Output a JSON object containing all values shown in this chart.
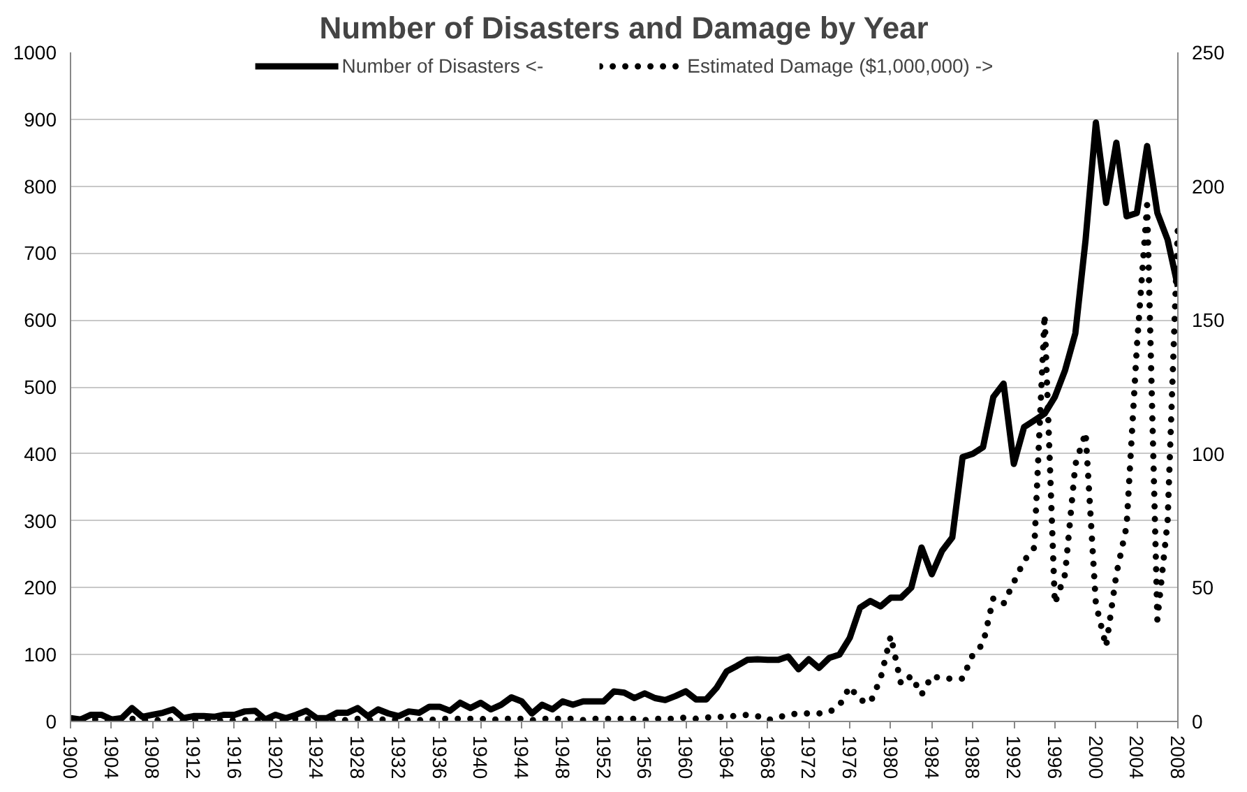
{
  "chart_data": {
    "type": "line",
    "title": "Number of Disasters and Damage by Year",
    "x": [
      1900,
      1901,
      1902,
      1903,
      1904,
      1905,
      1906,
      1907,
      1908,
      1909,
      1910,
      1911,
      1912,
      1913,
      1914,
      1915,
      1916,
      1917,
      1918,
      1919,
      1920,
      1921,
      1922,
      1923,
      1924,
      1925,
      1926,
      1927,
      1928,
      1929,
      1930,
      1931,
      1932,
      1933,
      1934,
      1935,
      1936,
      1937,
      1938,
      1939,
      1940,
      1941,
      1942,
      1943,
      1944,
      1945,
      1946,
      1947,
      1948,
      1949,
      1950,
      1951,
      1952,
      1953,
      1954,
      1955,
      1956,
      1957,
      1958,
      1959,
      1960,
      1961,
      1962,
      1963,
      1964,
      1965,
      1966,
      1967,
      1968,
      1969,
      1970,
      1971,
      1972,
      1973,
      1974,
      1975,
      1976,
      1977,
      1978,
      1979,
      1980,
      1981,
      1982,
      1983,
      1984,
      1985,
      1986,
      1987,
      1988,
      1989,
      1990,
      1991,
      1992,
      1993,
      1994,
      1995,
      1996,
      1997,
      1998,
      1999,
      2000,
      2001,
      2002,
      2003,
      2004,
      2005,
      2006,
      2007,
      2008
    ],
    "series": [
      {
        "name": "Number of Disasters <-",
        "color": "#000000",
        "line_style": "solid",
        "values": [
          5,
          3,
          10,
          10,
          3,
          5,
          20,
          7,
          10,
          13,
          18,
          5,
          8,
          8,
          7,
          10,
          10,
          15,
          16,
          3,
          10,
          5,
          10,
          16,
          5,
          5,
          13,
          13,
          20,
          8,
          18,
          12,
          8,
          15,
          13,
          22,
          22,
          16,
          28,
          20,
          28,
          18,
          25,
          36,
          30,
          12,
          25,
          18,
          30,
          25,
          30,
          30,
          30,
          45,
          43,
          35,
          42,
          35,
          32,
          38,
          45,
          33,
          33,
          50,
          75,
          83,
          92,
          93,
          92,
          92,
          97,
          78,
          93,
          80,
          95,
          100,
          125,
          170,
          180,
          172,
          185,
          185,
          200,
          260,
          220,
          255,
          275,
          395,
          400,
          410,
          485,
          505,
          385,
          440,
          450,
          460,
          485,
          525,
          580,
          720,
          895,
          775,
          865,
          755,
          760,
          860,
          760,
          720,
          650
        ]
      },
      {
        "name": "Estimated Damage ($1,000,000) ->",
        "color": "#000000",
        "line_style": "dotted",
        "axis": "y2",
        "values": [
          0.5,
          0,
          1,
          0.5,
          0,
          0.5,
          1,
          0.5,
          0.5,
          0.5,
          0.5,
          0,
          0.5,
          0.5,
          0,
          0.5,
          0.5,
          0.5,
          0.5,
          0,
          0.5,
          0.5,
          1,
          1,
          0,
          0.5,
          0.5,
          0.5,
          1,
          0.5,
          0.5,
          1,
          0.5,
          0.5,
          0.5,
          0.5,
          1,
          1,
          1,
          1,
          1,
          0.5,
          1,
          1,
          1,
          0.5,
          1,
          1,
          1,
          1,
          0.5,
          1,
          1,
          1,
          1,
          1,
          0.5,
          1,
          1,
          1,
          1.5,
          1,
          1.5,
          1.5,
          2,
          2,
          2.5,
          2,
          0.5,
          1.5,
          2.5,
          3,
          3,
          3,
          3.5,
          6,
          13,
          8,
          7,
          16,
          32,
          14,
          17,
          10,
          17,
          16,
          16,
          16,
          25,
          29,
          46,
          44,
          52,
          60,
          65,
          152,
          44,
          55,
          96,
          108,
          44,
          28,
          55,
          73,
          140,
          193,
          38,
          75,
          185
        ]
      }
    ],
    "xlim": [
      1900,
      2008
    ],
    "xticks": [
      1900,
      1904,
      1908,
      1912,
      1916,
      1920,
      1924,
      1928,
      1932,
      1936,
      1940,
      1944,
      1948,
      1952,
      1956,
      1960,
      1964,
      1968,
      1972,
      1976,
      1980,
      1984,
      1988,
      1992,
      1996,
      2000,
      2004,
      2008
    ],
    "ylim": [
      0,
      1000
    ],
    "yticks": [
      0,
      100,
      200,
      300,
      400,
      500,
      600,
      700,
      800,
      900,
      1000
    ],
    "y2lim": [
      0,
      250
    ],
    "y2ticks": [
      0,
      50,
      100,
      150,
      200,
      250
    ],
    "grid": "y",
    "legend": "top"
  }
}
